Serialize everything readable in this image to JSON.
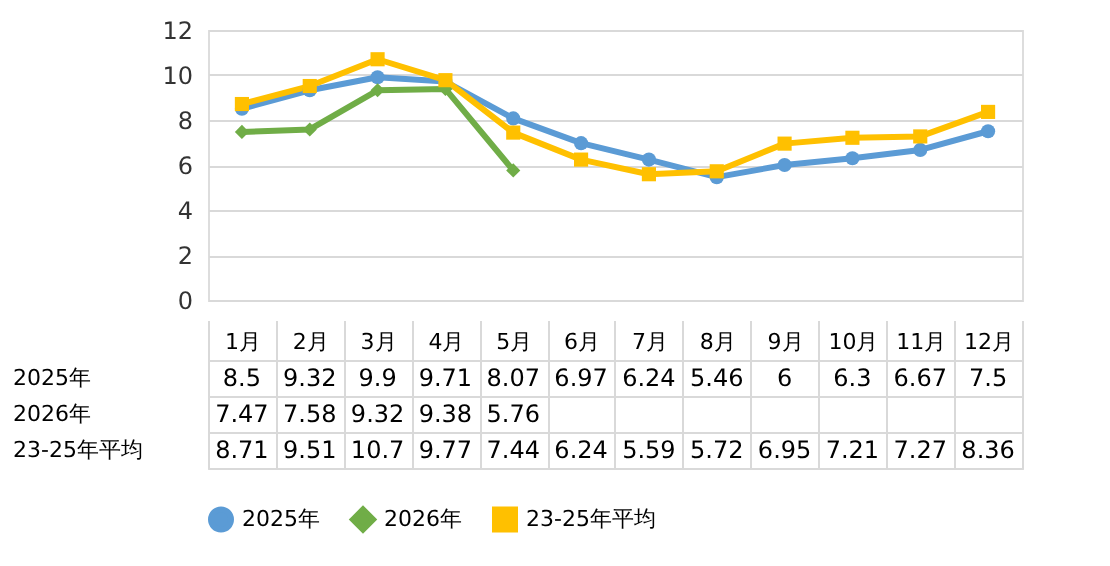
{
  "chart_data": {
    "type": "line",
    "categories": [
      "1月",
      "2月",
      "3月",
      "4月",
      "5月",
      "6月",
      "7月",
      "8月",
      "9月",
      "10月",
      "11月",
      "12月"
    ],
    "series": [
      {
        "name": "2025年",
        "color": "#5b9bd5",
        "marker": "circle",
        "values": [
          8.5,
          9.32,
          9.9,
          9.71,
          8.07,
          6.97,
          6.24,
          5.46,
          6,
          6.3,
          6.67,
          7.5
        ]
      },
      {
        "name": "2026年",
        "color": "#70ad47",
        "marker": "diamond",
        "values": [
          7.47,
          7.58,
          9.32,
          9.38,
          5.76,
          null,
          null,
          null,
          null,
          null,
          null,
          null
        ]
      },
      {
        "name": "23-25年平均",
        "color": "#ffc000",
        "marker": "square",
        "values": [
          8.71,
          9.51,
          10.7,
          9.77,
          7.44,
          6.24,
          5.59,
          5.72,
          6.95,
          7.21,
          7.27,
          8.36
        ]
      }
    ],
    "ylim": [
      0,
      12
    ],
    "yticks": [
      0,
      2,
      4,
      6,
      8,
      10,
      12
    ],
    "grid": "y",
    "legend": "bottom",
    "data_labels": true
  }
}
